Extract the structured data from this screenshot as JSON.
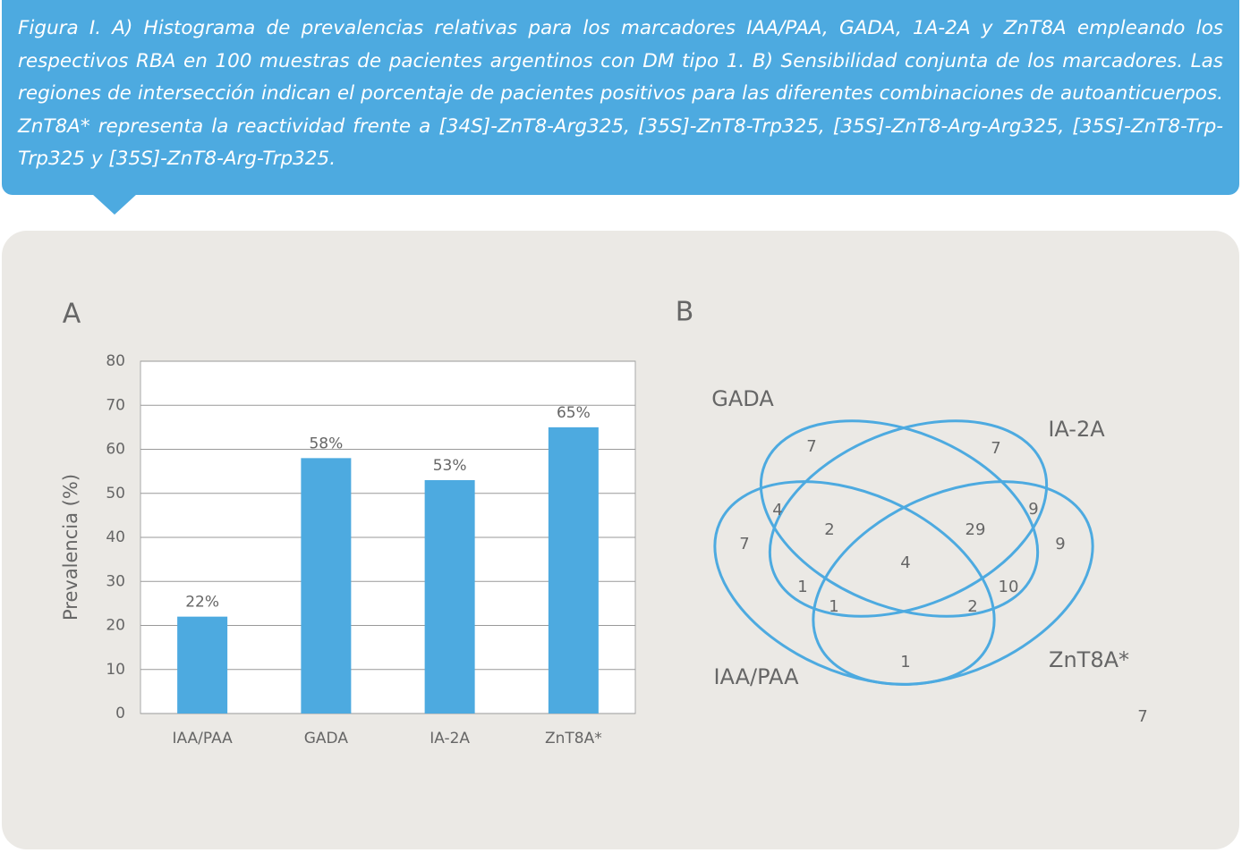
{
  "caption": "Figura I. A) Histograma de prevalencias relativas para los marcadores IAA/PAA, GADA, 1A-2A y ZnT8A empleando los respectivos RBA en 100 muestras de pacientes argentinos con DM tipo 1. B) Sensibilidad conjunta de los marcadores. Las regiones de intersección indican el porcentaje de pacientes positivos para las diferentes combinaciones de autoanticuerpos. ZnT8A* representa la reactividad frente a [34S]-ZnT8-Arg325, [35S]-ZnT8-Trp325, [35S]-ZnT8-Arg-Arg325, [35S]-ZnT8-Trp-Trp325 y [35S]-ZnT8-Arg-Trp325.",
  "panels": [
    "A",
    "B"
  ],
  "chart_data": {
    "type": "bar",
    "ylabel": "Prevalencia (%)",
    "categories": [
      "IAA/PAA",
      "GADA",
      "IA-2A",
      "ZnT8A*"
    ],
    "values": [
      22,
      58,
      53,
      65
    ],
    "value_labels": [
      "22%",
      "58%",
      "53%",
      "65%"
    ],
    "color": "#4daae0",
    "ylim": [
      0,
      80
    ],
    "yticks": [
      0,
      10,
      20,
      30,
      40,
      50,
      60,
      70,
      80
    ],
    "grid": true
  },
  "venn": {
    "sets": [
      "GADA",
      "IA-2A",
      "IAA/PAA",
      "ZnT8A*"
    ],
    "regions": [
      7,
      7,
      4,
      9,
      7,
      2,
      29,
      9,
      4,
      1,
      10,
      1,
      2,
      1,
      7
    ]
  }
}
